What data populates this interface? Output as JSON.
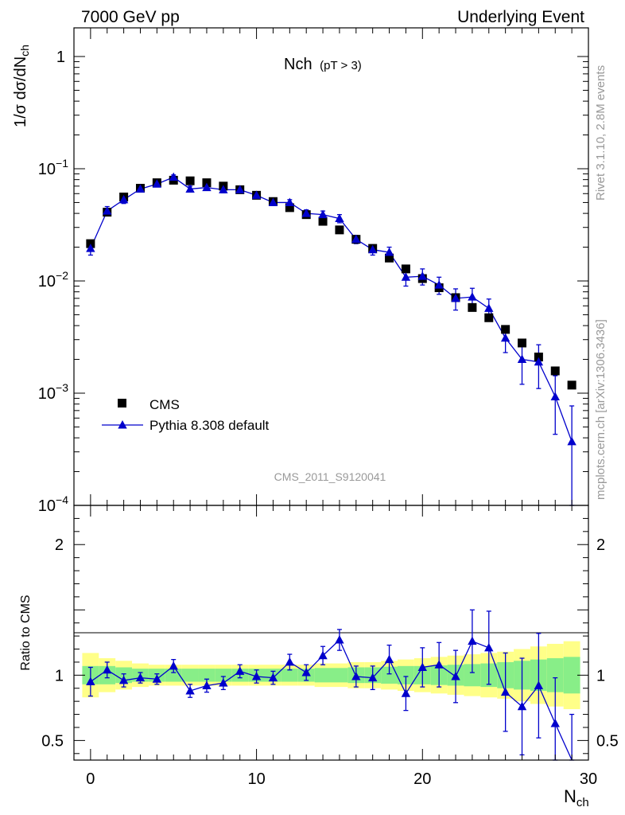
{
  "header": {
    "left": "7000 GeV pp",
    "right": "Underlying Event"
  },
  "side": {
    "rivet": "Rivet 3.1.10,  2.8M events",
    "mcplots": "mcplots.cern.ch [arXiv:1306.3436]"
  },
  "chart_data": [
    {
      "type": "scatter",
      "title": "Nch",
      "subtitle": "(pT >  3)",
      "watermark": "CMS_2011_S9120041",
      "xlabel": "N",
      "xlabel_sub": "ch",
      "ylabel": "1/σ dσ/dN",
      "ylabel_sub": "ch",
      "yscale": "log",
      "xlim": [
        -1,
        30
      ],
      "ylim": [
        0.0001,
        1.8
      ],
      "x_ticks": [
        0,
        10,
        20,
        30
      ],
      "y_ticks": [
        {
          "value": 1,
          "label": "1"
        },
        {
          "value": 0.1,
          "label": "10",
          "exp": "−1"
        },
        {
          "value": 0.01,
          "label": "10",
          "exp": "−2"
        },
        {
          "value": 0.001,
          "label": "10",
          "exp": "−3"
        },
        {
          "value": 0.0001,
          "label": "10",
          "exp": "−4"
        }
      ],
      "legend_position": "bottom-left",
      "x": [
        0,
        1,
        2,
        3,
        4,
        5,
        6,
        7,
        8,
        9,
        10,
        11,
        12,
        13,
        14,
        15,
        16,
        17,
        18,
        19,
        20,
        21,
        22,
        23,
        24,
        25,
        26,
        27,
        28,
        29
      ],
      "series": [
        {
          "name": "CMS",
          "marker": "square",
          "color": "#000000",
          "values": [
            0.0215,
            0.041,
            0.056,
            0.067,
            0.075,
            0.079,
            0.078,
            0.075,
            0.07,
            0.065,
            0.058,
            0.051,
            0.045,
            0.039,
            0.034,
            0.0285,
            0.0235,
            0.0195,
            0.016,
            0.0128,
            0.0105,
            0.0087,
            0.0071,
            0.0058,
            0.0047,
            0.0037,
            0.0028,
            0.0021,
            0.00158,
            0.00118
          ]
        },
        {
          "name": "Pythia 8.308 default",
          "marker": "triangle",
          "color": "#0000cc",
          "values": [
            0.0195,
            0.042,
            0.053,
            0.066,
            0.073,
            0.084,
            0.066,
            0.068,
            0.065,
            0.065,
            0.058,
            0.05,
            0.05,
            0.04,
            0.039,
            0.036,
            0.0235,
            0.019,
            0.018,
            0.0108,
            0.011,
            0.0092,
            0.007,
            0.0072,
            0.0057,
            0.0031,
            0.002,
            0.0019,
            0.00093,
            0.00037
          ],
          "err_low": [
            0.0025,
            0.004,
            0.004,
            0.004,
            0.004,
            0.004,
            0.004,
            0.004,
            0.004,
            0.004,
            0.003,
            0.003,
            0.003,
            0.003,
            0.003,
            0.003,
            0.002,
            0.002,
            0.002,
            0.0018,
            0.0018,
            0.0016,
            0.0015,
            0.0014,
            0.0012,
            0.0008,
            0.0008,
            0.0008,
            0.0005,
            0.00036
          ],
          "err_high": [
            0.0025,
            0.004,
            0.004,
            0.004,
            0.004,
            0.004,
            0.004,
            0.004,
            0.004,
            0.004,
            0.003,
            0.003,
            0.003,
            0.003,
            0.003,
            0.003,
            0.002,
            0.002,
            0.002,
            0.0018,
            0.0018,
            0.0016,
            0.0015,
            0.0014,
            0.0012,
            0.0008,
            0.0008,
            0.0008,
            0.0005,
            0.0004
          ]
        }
      ]
    },
    {
      "type": "line",
      "ylabel": "Ratio to CMS",
      "xlim": [
        -1,
        30
      ],
      "ylim": [
        0.35,
        2.3
      ],
      "x_ticks": [
        0,
        10,
        20,
        30
      ],
      "y_ticks": [
        0.5,
        1,
        2
      ],
      "x": [
        0,
        1,
        2,
        3,
        4,
        5,
        6,
        7,
        8,
        9,
        10,
        11,
        12,
        13,
        14,
        15,
        16,
        17,
        18,
        19,
        20,
        21,
        22,
        23,
        24,
        25,
        26,
        27,
        28,
        29
      ],
      "bands": {
        "stat_half_width": [
          0.07,
          0.07,
          0.06,
          0.05,
          0.05,
          0.05,
          0.05,
          0.05,
          0.05,
          0.05,
          0.05,
          0.05,
          0.05,
          0.05,
          0.055,
          0.055,
          0.06,
          0.06,
          0.065,
          0.07,
          0.07,
          0.075,
          0.08,
          0.085,
          0.09,
          0.1,
          0.11,
          0.12,
          0.13,
          0.14
        ],
        "total_half_width": [
          0.17,
          0.13,
          0.11,
          0.09,
          0.08,
          0.08,
          0.08,
          0.08,
          0.08,
          0.08,
          0.08,
          0.08,
          0.08,
          0.08,
          0.09,
          0.09,
          0.1,
          0.1,
          0.11,
          0.12,
          0.13,
          0.14,
          0.15,
          0.16,
          0.17,
          0.18,
          0.2,
          0.22,
          0.24,
          0.26
        ],
        "stat_color": "#88ee88",
        "total_color": "#ffff88"
      },
      "series": [
        {
          "name": "Pythia 8.308 default",
          "color": "#0000cc",
          "values": [
            0.95,
            1.04,
            0.96,
            0.98,
            0.97,
            1.07,
            0.88,
            0.92,
            0.94,
            1.03,
            0.99,
            0.98,
            1.1,
            1.02,
            1.15,
            1.27,
            0.99,
            0.98,
            1.12,
            0.86,
            1.06,
            1.08,
            0.99,
            1.26,
            1.21,
            0.87,
            0.76,
            0.92,
            0.63,
            0.3
          ],
          "err_low": [
            0.11,
            0.06,
            0.05,
            0.04,
            0.04,
            0.05,
            0.05,
            0.05,
            0.05,
            0.05,
            0.05,
            0.05,
            0.06,
            0.06,
            0.07,
            0.08,
            0.08,
            0.09,
            0.11,
            0.13,
            0.15,
            0.17,
            0.2,
            0.24,
            0.28,
            0.3,
            0.37,
            0.4,
            0.3,
            0.2
          ],
          "err_high": [
            0.11,
            0.06,
            0.05,
            0.04,
            0.04,
            0.05,
            0.05,
            0.05,
            0.05,
            0.05,
            0.05,
            0.05,
            0.06,
            0.06,
            0.07,
            0.08,
            0.08,
            0.09,
            0.11,
            0.13,
            0.15,
            0.17,
            0.2,
            0.24,
            0.28,
            0.3,
            0.37,
            0.4,
            0.35,
            0.4
          ]
        }
      ]
    }
  ]
}
